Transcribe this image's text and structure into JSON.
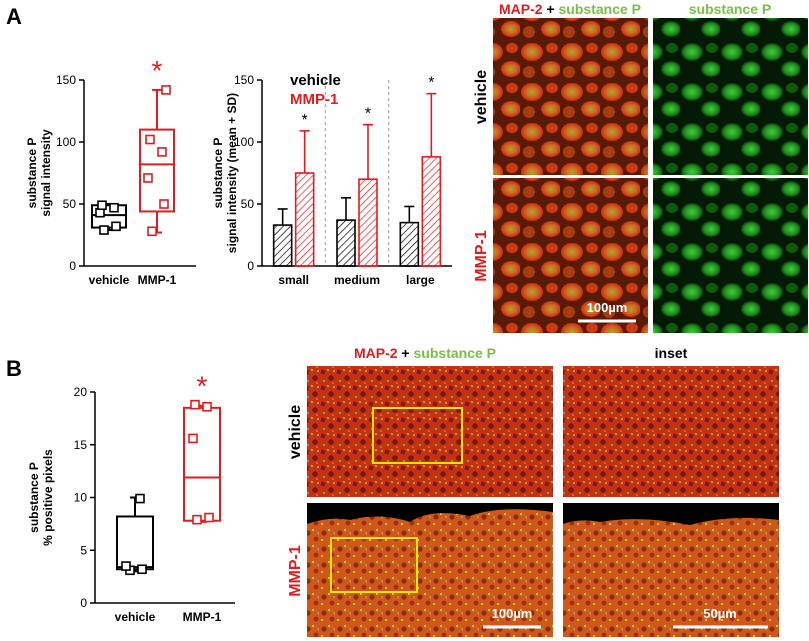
{
  "figure": {
    "panel_a": "A",
    "panel_b": "B",
    "headers_a": {
      "merge_prefix": "MAP-2",
      "merge_plus": " + ",
      "merge_suffix": "substance P",
      "single": "substance P"
    },
    "headers_b": {
      "merge_prefix": "MAP-2",
      "merge_plus": " + ",
      "merge_suffix": "substance P",
      "inset": "inset"
    },
    "rows": {
      "vehicle": "vehicle",
      "mmp1": "MMP-1"
    },
    "scalebars": {
      "a": "100µm",
      "b_main": "100µm",
      "b_inset": "50µm"
    },
    "colors": {
      "vehicle": "#000000",
      "mmp1": "#e41a1c",
      "map2": "#e41a1c",
      "substance_p": "#7ac143",
      "inset_box": "#f3e600"
    }
  },
  "chart_data": [
    {
      "id": "A-box",
      "type": "box",
      "ylabel": [
        "substance P",
        "signal intensity"
      ],
      "ylim": [
        0,
        150
      ],
      "yticks": [
        0,
        50,
        100,
        150
      ],
      "categories": [
        "vehicle",
        "MMP-1"
      ],
      "colors": [
        "#000000",
        "#e41a1c"
      ],
      "boxes": [
        {
          "name": "vehicle",
          "min": 29,
          "q1": 31,
          "median": 41,
          "q3": 49,
          "max": 50,
          "points": [
            29,
            32,
            43,
            47,
            49
          ]
        },
        {
          "name": "MMP-1",
          "min": 27,
          "q1": 44,
          "median": 82,
          "q3": 110,
          "max": 142,
          "points": [
            28,
            50,
            71,
            92,
            102,
            142
          ]
        }
      ],
      "significance": [
        {
          "category": "MMP-1",
          "label": "*"
        }
      ]
    },
    {
      "id": "A-bar",
      "type": "bar",
      "ylabel": [
        "substance P",
        "signal intensity (mean + SD)"
      ],
      "ylim": [
        0,
        150
      ],
      "yticks": [
        0,
        50,
        100,
        150
      ],
      "categories": [
        "small",
        "medium",
        "large"
      ],
      "legend": [
        {
          "label": "vehicle",
          "color": "#000000"
        },
        {
          "label": "MMP-1",
          "color": "#e41a1c"
        }
      ],
      "series": [
        {
          "name": "vehicle",
          "values": [
            33,
            37,
            35
          ],
          "sd": [
            13,
            18,
            13
          ]
        },
        {
          "name": "MMP-1",
          "values": [
            75,
            70,
            88
          ],
          "sd": [
            34,
            44,
            51
          ]
        }
      ],
      "significance": [
        {
          "category": "small",
          "label": "*"
        },
        {
          "category": "medium",
          "label": "*"
        },
        {
          "category": "large",
          "label": "*"
        }
      ]
    },
    {
      "id": "B-box",
      "type": "box",
      "ylabel": [
        "substance P",
        "% positive pixels"
      ],
      "ylim": [
        0,
        20
      ],
      "yticks": [
        0,
        5,
        10,
        15,
        20
      ],
      "categories": [
        "vehicle",
        "MMP-1"
      ],
      "colors": [
        "#000000",
        "#e41a1c"
      ],
      "boxes": [
        {
          "name": "vehicle",
          "min": 3.0,
          "q1": 3.2,
          "median": 3.4,
          "q3": 8.2,
          "max": 10.0,
          "points": [
            3.1,
            3.2,
            3.5,
            9.9
          ]
        },
        {
          "name": "MMP-1",
          "min": 7.7,
          "q1": 7.8,
          "median": 11.9,
          "q3": 18.5,
          "max": 18.7,
          "points": [
            7.9,
            8.1,
            15.6,
            18.6,
            18.8
          ]
        }
      ],
      "significance": [
        {
          "category": "MMP-1",
          "label": "*"
        }
      ]
    }
  ]
}
